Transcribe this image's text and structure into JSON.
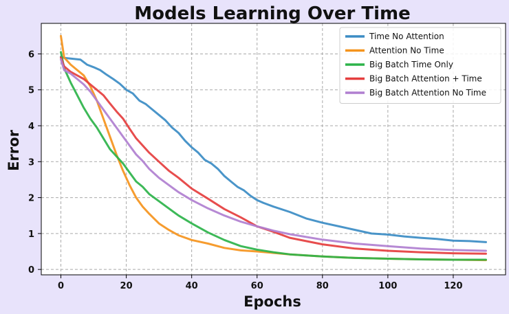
{
  "chart_data": {
    "type": "line",
    "title": "Models Learning Over Time",
    "xlabel": "Epochs",
    "ylabel": "Error",
    "xlim": [
      -6,
      136
    ],
    "ylim": [
      -0.15,
      6.85
    ],
    "xticks": [
      0,
      20,
      40,
      60,
      80,
      100,
      120
    ],
    "yticks": [
      0,
      1,
      2,
      3,
      4,
      5,
      6
    ],
    "grid": true,
    "legend_position": "upper-right",
    "series": [
      {
        "name": "Time No Attention",
        "color": "#3b8cc4",
        "x": [
          0,
          1,
          3,
          6,
          8,
          10,
          12,
          14,
          16,
          18,
          20,
          22,
          24,
          26,
          28,
          30,
          32,
          34,
          36,
          38,
          40,
          42,
          44,
          46,
          48,
          50,
          52,
          54,
          56,
          58,
          60,
          62,
          65,
          70,
          75,
          80,
          85,
          90,
          95,
          100,
          105,
          110,
          115,
          120,
          125,
          130
        ],
        "y": [
          5.92,
          5.89,
          5.87,
          5.84,
          5.7,
          5.63,
          5.55,
          5.42,
          5.3,
          5.17,
          5.0,
          4.9,
          4.7,
          4.6,
          4.45,
          4.3,
          4.15,
          3.95,
          3.8,
          3.58,
          3.4,
          3.25,
          3.05,
          2.95,
          2.8,
          2.6,
          2.45,
          2.3,
          2.2,
          2.05,
          1.93,
          1.85,
          1.75,
          1.6,
          1.42,
          1.3,
          1.2,
          1.1,
          1.0,
          0.97,
          0.92,
          0.88,
          0.85,
          0.8,
          0.79,
          0.76
        ]
      },
      {
        "name": "Attention No Time",
        "color": "#f5941d",
        "x": [
          0,
          1,
          3,
          5,
          7,
          9,
          11,
          13,
          15,
          17,
          19,
          21,
          23,
          25,
          27,
          30,
          33,
          36,
          40,
          45,
          50,
          55,
          60,
          70,
          80,
          90,
          100,
          110,
          120,
          130
        ],
        "y": [
          6.5,
          5.9,
          5.7,
          5.55,
          5.4,
          5.1,
          4.7,
          4.2,
          3.7,
          3.2,
          2.75,
          2.35,
          2.0,
          1.75,
          1.55,
          1.28,
          1.1,
          0.95,
          0.82,
          0.72,
          0.6,
          0.53,
          0.5,
          0.42,
          0.36,
          0.32,
          0.3,
          0.28,
          0.27,
          0.26
        ]
      },
      {
        "name": "Big Batch Time Only",
        "color": "#2db34a",
        "x": [
          0,
          1,
          3,
          5,
          7,
          9,
          11,
          13,
          15,
          17,
          19,
          21,
          23,
          25,
          27,
          30,
          33,
          36,
          40,
          45,
          50,
          55,
          60,
          65,
          70,
          80,
          90,
          100,
          110,
          120,
          130
        ],
        "y": [
          6.05,
          5.6,
          5.2,
          4.85,
          4.5,
          4.2,
          3.95,
          3.65,
          3.35,
          3.15,
          2.95,
          2.7,
          2.45,
          2.3,
          2.1,
          1.9,
          1.7,
          1.5,
          1.28,
          1.03,
          0.82,
          0.65,
          0.55,
          0.48,
          0.42,
          0.36,
          0.32,
          0.3,
          0.28,
          0.27,
          0.27
        ]
      },
      {
        "name": "Big Batch Attention + Time",
        "color": "#e53e3e",
        "x": [
          0,
          1,
          3,
          5,
          7,
          9,
          11,
          13,
          15,
          17,
          19,
          21,
          23,
          25,
          27,
          30,
          33,
          36,
          40,
          45,
          50,
          55,
          60,
          65,
          70,
          80,
          90,
          100,
          110,
          120,
          130
        ],
        "y": [
          5.9,
          5.65,
          5.5,
          5.4,
          5.3,
          5.15,
          5.0,
          4.85,
          4.62,
          4.4,
          4.2,
          3.92,
          3.65,
          3.45,
          3.25,
          3.0,
          2.75,
          2.55,
          2.25,
          1.97,
          1.68,
          1.45,
          1.2,
          1.05,
          0.88,
          0.7,
          0.58,
          0.52,
          0.48,
          0.45,
          0.44
        ]
      },
      {
        "name": "Big Batch Attention No Time",
        "color": "#b07fd0",
        "x": [
          0,
          1,
          3,
          5,
          7,
          9,
          11,
          13,
          15,
          17,
          19,
          21,
          23,
          25,
          27,
          30,
          33,
          36,
          40,
          45,
          50,
          55,
          60,
          65,
          70,
          80,
          90,
          100,
          110,
          120,
          130
        ],
        "y": [
          5.85,
          5.55,
          5.45,
          5.3,
          5.15,
          4.95,
          4.7,
          4.45,
          4.2,
          3.95,
          3.7,
          3.45,
          3.2,
          3.02,
          2.8,
          2.55,
          2.35,
          2.15,
          1.93,
          1.7,
          1.5,
          1.33,
          1.2,
          1.08,
          0.98,
          0.83,
          0.72,
          0.65,
          0.58,
          0.54,
          0.52
        ]
      }
    ]
  }
}
